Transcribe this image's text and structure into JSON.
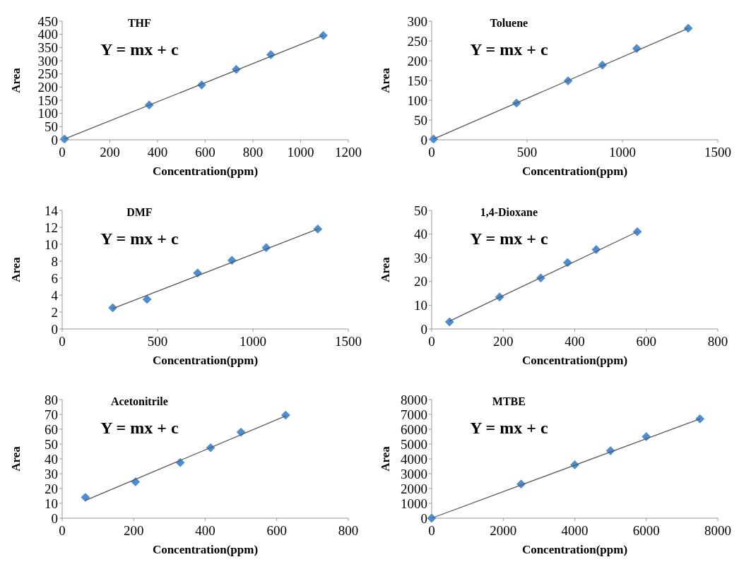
{
  "chart_data": [
    {
      "type": "scatter",
      "title": "THF",
      "xlabel": "Concentration(ppm)",
      "ylabel": "Area",
      "annotations": [
        "Y = mx + c"
      ],
      "marker": "diamond",
      "xlim": [
        0,
        1200
      ],
      "xticks": [
        0,
        200,
        400,
        600,
        800,
        1000,
        1200
      ],
      "ylim": [
        0,
        450
      ],
      "yticks": [
        0,
        50,
        100,
        150,
        200,
        250,
        300,
        350,
        400,
        450
      ],
      "series": [
        {
          "color": "#4a8fd4",
          "x": [
            10,
            365,
            585,
            730,
            875,
            1095
          ],
          "values": [
            3,
            132,
            208,
            267,
            323,
            396
          ]
        },
        {
          "type": "line",
          "color": "#595959",
          "marker": "none",
          "x": [
            10,
            1095
          ],
          "values": [
            3,
            396
          ]
        }
      ]
    },
    {
      "type": "scatter",
      "title": "Toluene",
      "xlabel": "Concentration(ppm)",
      "ylabel": "Area",
      "annotations": [
        "Y = mx + c"
      ],
      "marker": "diamond",
      "xlim": [
        0,
        1500
      ],
      "xticks": [
        0,
        500,
        1000,
        1500
      ],
      "ylim": [
        0,
        300
      ],
      "yticks": [
        0,
        50,
        100,
        150,
        200,
        250,
        300
      ],
      "series": [
        {
          "color": "#4a8fd4",
          "x": [
            10,
            445,
            715,
            895,
            1075,
            1345
          ],
          "values": [
            2,
            93,
            149,
            189,
            231,
            282
          ]
        },
        {
          "type": "line",
          "color": "#595959",
          "marker": "none",
          "x": [
            10,
            1345
          ],
          "values": [
            2,
            282
          ]
        }
      ]
    },
    {
      "type": "scatter",
      "title": "DMF",
      "xlabel": "Concentration(ppm)",
      "ylabel": "Area",
      "annotations": [
        "Y = mx + c"
      ],
      "marker": "diamond",
      "xlim": [
        0,
        1500
      ],
      "xticks": [
        0,
        500,
        1000,
        1500
      ],
      "ylim": [
        0,
        14
      ],
      "yticks": [
        0,
        2,
        4,
        6,
        8,
        10,
        12,
        14
      ],
      "series": [
        {
          "color": "#4a8fd4",
          "x": [
            265,
            445,
            710,
            890,
            1070,
            1340
          ],
          "values": [
            2.5,
            3.5,
            6.6,
            8.1,
            9.6,
            11.8
          ]
        },
        {
          "type": "line",
          "color": "#595959",
          "marker": "none",
          "x": [
            265,
            1340
          ],
          "values": [
            2.4,
            11.8
          ]
        }
      ]
    },
    {
      "type": "scatter",
      "title": "1,4-Dioxane",
      "xlabel": "Concentration(ppm)",
      "ylabel": "Area",
      "annotations": [
        "Y = mx + c"
      ],
      "marker": "diamond",
      "xlim": [
        0,
        800
      ],
      "xticks": [
        0,
        200,
        400,
        600,
        800
      ],
      "ylim": [
        0,
        50
      ],
      "yticks": [
        0,
        10,
        20,
        30,
        40,
        50
      ],
      "series": [
        {
          "color": "#4a8fd4",
          "x": [
            50,
            190,
            305,
            380,
            460,
            575
          ],
          "values": [
            3,
            13.5,
            21.5,
            28,
            33.5,
            41
          ]
        },
        {
          "type": "line",
          "color": "#595959",
          "marker": "none",
          "x": [
            50,
            575
          ],
          "values": [
            3.3,
            41
          ]
        }
      ]
    },
    {
      "type": "scatter",
      "title": "Acetonitrile",
      "xlabel": "Concentration(ppm)",
      "ylabel": "Area",
      "annotations": [
        "Y = mx + c"
      ],
      "marker": "diamond",
      "xlim": [
        0,
        800
      ],
      "xticks": [
        0,
        200,
        400,
        600,
        800
      ],
      "ylim": [
        0,
        80
      ],
      "yticks": [
        0,
        10,
        20,
        30,
        40,
        50,
        60,
        70,
        80
      ],
      "series": [
        {
          "color": "#4a8fd4",
          "x": [
            65,
            205,
            330,
            415,
            500,
            625
          ],
          "values": [
            14,
            24.5,
            37.5,
            47.5,
            58,
            69.5
          ]
        },
        {
          "type": "line",
          "color": "#595959",
          "marker": "none",
          "x": [
            65,
            625
          ],
          "values": [
            12,
            69
          ]
        }
      ]
    },
    {
      "type": "scatter",
      "title": "MTBE",
      "xlabel": "Concentration(ppm)",
      "ylabel": "Area",
      "annotations": [
        "Y = mx + c"
      ],
      "marker": "diamond",
      "xlim": [
        0,
        8000
      ],
      "xticks": [
        0,
        2000,
        4000,
        6000,
        8000
      ],
      "ylim": [
        0,
        8000
      ],
      "yticks": [
        0,
        1000,
        2000,
        3000,
        4000,
        5000,
        6000,
        7000,
        8000
      ],
      "series": [
        {
          "color": "#4a8fd4",
          "x": [
            0,
            2500,
            4000,
            5000,
            6000,
            7500
          ],
          "values": [
            0,
            2300,
            3600,
            4550,
            5500,
            6700
          ]
        },
        {
          "type": "line",
          "color": "#595959",
          "marker": "none",
          "x": [
            0,
            7500
          ],
          "values": [
            0,
            6700
          ]
        }
      ]
    }
  ]
}
